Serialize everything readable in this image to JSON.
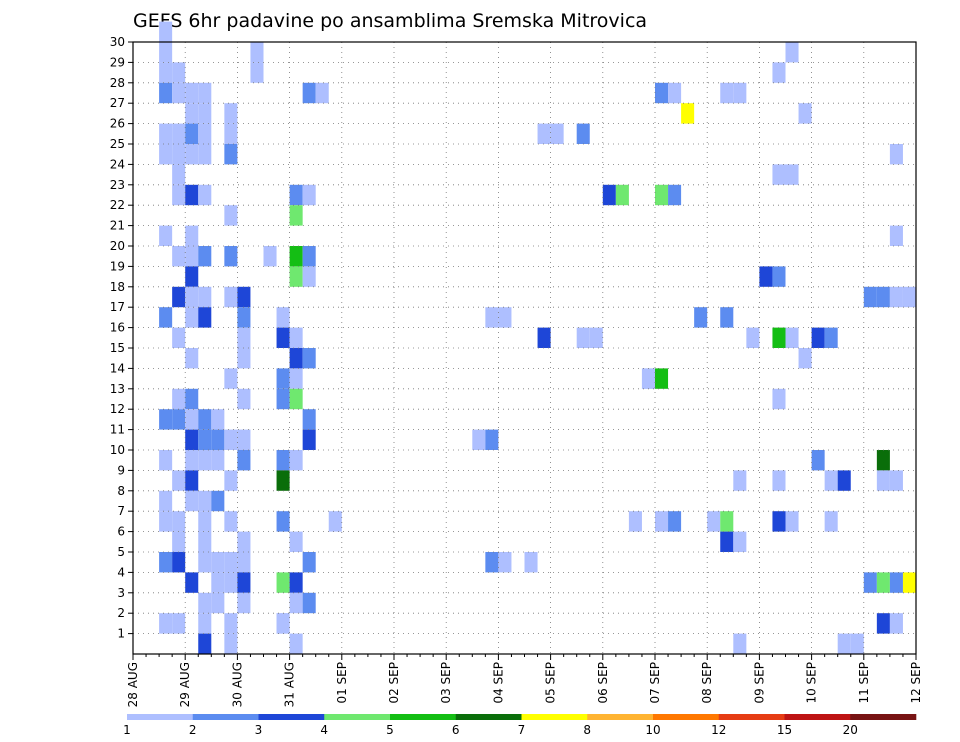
{
  "chart_data": {
    "type": "heatmap",
    "title": "GEFS 6hr padavine po ansamblima Sremska Mitrovica",
    "xlabel": "",
    "ylabel": "",
    "x_tick_labels": [
      "28 AUG",
      "29 AUG",
      "30 AUG",
      "31 AUG",
      "01 SEP",
      "02 SEP",
      "03 SEP",
      "04 SEP",
      "05 SEP",
      "06 SEP",
      "07 SEP",
      "08 SEP",
      "09 SEP",
      "10 SEP",
      "11 SEP",
      "12 SEP"
    ],
    "y_tick_labels": [
      "1",
      "2",
      "3",
      "4",
      "5",
      "6",
      "7",
      "8",
      "9",
      "10",
      "11",
      "12",
      "13",
      "14",
      "15",
      "16",
      "17",
      "18",
      "19",
      "20",
      "21",
      "22",
      "23",
      "24",
      "25",
      "26",
      "27",
      "28",
      "29",
      "30"
    ],
    "x_steps_per_day": 4,
    "x_range_steps": [
      0,
      60
    ],
    "y_range": [
      0,
      30
    ],
    "grid": true,
    "colorbar": {
      "labels": [
        "1",
        "2",
        "3",
        "4",
        "5",
        "6",
        "7",
        "8",
        "10",
        "12",
        "15",
        "20"
      ],
      "colors": [
        "#aebfff",
        "#5c8cf0",
        "#1e46d7",
        "#6fe86f",
        "#14be14",
        "#0a6e0a",
        "#ffff00",
        "#ffb432",
        "#ff7800",
        "#e63c14",
        "#be1414",
        "#781414"
      ]
    },
    "cells": [
      [
        2,
        30,
        1
      ],
      [
        2,
        29,
        1
      ],
      [
        2,
        28,
        1
      ],
      [
        2,
        27,
        2
      ],
      [
        2,
        25,
        1
      ],
      [
        2,
        24,
        1
      ],
      [
        2,
        20,
        1
      ],
      [
        2,
        16,
        2
      ],
      [
        2,
        11,
        2
      ],
      [
        2,
        9,
        1
      ],
      [
        2,
        7,
        1
      ],
      [
        2,
        6,
        1
      ],
      [
        2,
        4,
        2
      ],
      [
        2,
        1,
        1
      ],
      [
        3,
        1,
        1
      ],
      [
        3,
        28,
        1
      ],
      [
        3,
        27,
        1
      ],
      [
        3,
        25,
        1
      ],
      [
        3,
        24,
        1
      ],
      [
        3,
        23,
        1
      ],
      [
        3,
        22,
        1
      ],
      [
        3,
        19,
        1
      ],
      [
        3,
        17,
        3
      ],
      [
        3,
        15,
        1
      ],
      [
        3,
        12,
        1
      ],
      [
        3,
        11,
        2
      ],
      [
        3,
        8,
        1
      ],
      [
        3,
        6,
        1
      ],
      [
        3,
        5,
        1
      ],
      [
        3,
        4,
        3
      ],
      [
        4,
        27,
        1
      ],
      [
        4,
        26,
        1
      ],
      [
        4,
        25,
        2
      ],
      [
        4,
        24,
        1
      ],
      [
        4,
        22,
        3
      ],
      [
        4,
        20,
        1
      ],
      [
        4,
        19,
        1
      ],
      [
        4,
        18,
        3
      ],
      [
        4,
        17,
        1
      ],
      [
        4,
        16,
        1
      ],
      [
        4,
        14,
        1
      ],
      [
        4,
        12,
        2
      ],
      [
        4,
        11,
        1
      ],
      [
        4,
        10,
        3
      ],
      [
        4,
        9,
        1
      ],
      [
        4,
        8,
        3
      ],
      [
        4,
        7,
        1
      ],
      [
        4,
        3,
        3
      ],
      [
        5,
        27,
        1
      ],
      [
        5,
        26,
        1
      ],
      [
        5,
        25,
        1
      ],
      [
        5,
        24,
        1
      ],
      [
        5,
        22,
        1
      ],
      [
        5,
        19,
        2
      ],
      [
        5,
        17,
        1
      ],
      [
        5,
        16,
        3
      ],
      [
        5,
        11,
        2
      ],
      [
        5,
        10,
        2
      ],
      [
        5,
        9,
        1
      ],
      [
        5,
        7,
        1
      ],
      [
        5,
        6,
        1
      ],
      [
        5,
        5,
        1
      ],
      [
        5,
        4,
        1
      ],
      [
        5,
        2,
        1
      ],
      [
        5,
        1,
        1
      ],
      [
        5,
        0,
        3
      ],
      [
        6,
        11,
        1
      ],
      [
        6,
        10,
        2
      ],
      [
        6,
        9,
        1
      ],
      [
        6,
        7,
        2
      ],
      [
        6,
        4,
        1
      ],
      [
        6,
        3,
        1
      ],
      [
        6,
        2,
        1
      ],
      [
        7,
        26,
        1
      ],
      [
        7,
        25,
        1
      ],
      [
        7,
        24,
        2
      ],
      [
        7,
        21,
        1
      ],
      [
        7,
        19,
        2
      ],
      [
        7,
        17,
        1
      ],
      [
        7,
        13,
        1
      ],
      [
        7,
        10,
        1
      ],
      [
        7,
        8,
        1
      ],
      [
        7,
        6,
        1
      ],
      [
        7,
        4,
        1
      ],
      [
        7,
        3,
        1
      ],
      [
        7,
        1,
        1
      ],
      [
        7,
        0,
        1
      ],
      [
        8,
        17,
        3
      ],
      [
        8,
        16,
        2
      ],
      [
        8,
        15,
        1
      ],
      [
        8,
        14,
        1
      ],
      [
        8,
        12,
        1
      ],
      [
        8,
        10,
        1
      ],
      [
        8,
        9,
        2
      ],
      [
        8,
        5,
        1
      ],
      [
        8,
        4,
        1
      ],
      [
        8,
        3,
        3
      ],
      [
        8,
        2,
        1
      ],
      [
        9,
        29,
        1
      ],
      [
        9,
        28,
        1
      ],
      [
        10,
        19,
        1
      ],
      [
        11,
        1,
        1
      ],
      [
        11,
        16,
        1
      ],
      [
        11,
        15,
        3
      ],
      [
        11,
        13,
        2
      ],
      [
        11,
        12,
        2
      ],
      [
        11,
        9,
        2
      ],
      [
        11,
        8,
        6
      ],
      [
        11,
        6,
        2
      ],
      [
        11,
        3,
        4
      ],
      [
        11,
        1,
        1
      ],
      [
        12,
        22,
        2
      ],
      [
        12,
        21,
        4
      ],
      [
        12,
        19,
        5
      ],
      [
        12,
        18,
        4
      ],
      [
        12,
        15,
        1
      ],
      [
        12,
        14,
        3
      ],
      [
        12,
        13,
        1
      ],
      [
        12,
        12,
        4
      ],
      [
        12,
        9,
        1
      ],
      [
        12,
        5,
        1
      ],
      [
        12,
        3,
        3
      ],
      [
        12,
        2,
        1
      ],
      [
        12,
        0,
        1
      ],
      [
        13,
        27,
        2
      ],
      [
        13,
        22,
        1
      ],
      [
        13,
        19,
        2
      ],
      [
        13,
        18,
        1
      ],
      [
        13,
        14,
        2
      ],
      [
        13,
        11,
        2
      ],
      [
        13,
        10,
        3
      ],
      [
        13,
        4,
        2
      ],
      [
        13,
        2,
        2
      ],
      [
        14,
        27,
        1
      ],
      [
        15,
        6,
        1
      ],
      [
        26,
        10,
        1
      ],
      [
        27,
        16,
        1
      ],
      [
        27,
        10,
        2
      ],
      [
        27,
        4,
        2
      ],
      [
        28,
        16,
        1
      ],
      [
        28,
        4,
        1
      ],
      [
        30,
        4,
        1
      ],
      [
        31,
        25,
        1
      ],
      [
        31,
        15,
        3
      ],
      [
        32,
        25,
        1
      ],
      [
        34,
        25,
        2
      ],
      [
        34,
        15,
        1
      ],
      [
        35,
        15,
        1
      ],
      [
        36,
        22,
        3
      ],
      [
        37,
        22,
        4
      ],
      [
        38,
        6,
        1
      ],
      [
        39,
        13,
        1
      ],
      [
        39,
        13,
        1
      ],
      [
        40,
        22,
        4
      ],
      [
        40,
        27,
        2
      ],
      [
        40,
        13,
        5
      ],
      [
        40,
        6,
        1
      ],
      [
        41,
        27,
        1
      ],
      [
        41,
        22,
        2
      ],
      [
        41,
        6,
        2
      ],
      [
        42,
        26,
        7
      ],
      [
        43,
        16,
        2
      ],
      [
        44,
        6,
        1
      ],
      [
        45,
        27,
        1
      ],
      [
        45,
        16,
        2
      ],
      [
        45,
        6,
        4
      ],
      [
        45,
        5,
        3
      ],
      [
        46,
        27,
        1
      ],
      [
        46,
        8,
        1
      ],
      [
        46,
        5,
        1
      ],
      [
        46,
        0,
        1
      ],
      [
        47,
        15,
        1
      ],
      [
        48,
        18,
        3
      ],
      [
        49,
        28,
        1
      ],
      [
        49,
        23,
        1
      ],
      [
        49,
        18,
        2
      ],
      [
        49,
        15,
        5
      ],
      [
        49,
        12,
        1
      ],
      [
        49,
        8,
        1
      ],
      [
        49,
        6,
        3
      ],
      [
        50,
        29,
        1
      ],
      [
        50,
        23,
        1
      ],
      [
        50,
        15,
        1
      ],
      [
        50,
        6,
        1
      ],
      [
        51,
        26,
        1
      ],
      [
        51,
        14,
        1
      ],
      [
        52,
        15,
        3
      ],
      [
        52,
        9,
        2
      ],
      [
        53,
        15,
        2
      ],
      [
        53,
        8,
        1
      ],
      [
        53,
        6,
        1
      ],
      [
        54,
        8,
        3
      ],
      [
        54,
        0,
        1
      ],
      [
        55,
        0,
        1
      ],
      [
        56,
        17,
        2
      ],
      [
        56,
        3,
        2
      ],
      [
        57,
        17,
        2
      ],
      [
        57,
        9,
        6
      ],
      [
        57,
        8,
        1
      ],
      [
        57,
        3,
        4
      ],
      [
        57,
        1,
        3
      ],
      [
        58,
        24,
        1
      ],
      [
        58,
        20,
        1
      ],
      [
        58,
        17,
        1
      ],
      [
        58,
        8,
        1
      ],
      [
        58,
        3,
        2
      ],
      [
        58,
        1,
        1
      ],
      [
        59,
        17,
        1
      ],
      [
        59,
        3,
        7
      ],
      [
        60,
        24,
        3
      ],
      [
        60,
        16,
        1
      ],
      [
        60,
        15,
        1
      ],
      [
        60,
        0,
        1
      ]
    ]
  }
}
